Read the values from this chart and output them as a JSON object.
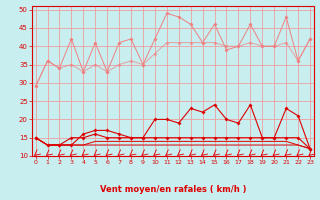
{
  "x": [
    0,
    1,
    2,
    3,
    4,
    5,
    6,
    7,
    8,
    9,
    10,
    11,
    12,
    13,
    14,
    15,
    16,
    17,
    18,
    19,
    20,
    21,
    22,
    23
  ],
  "line1": [
    29,
    36,
    34,
    42,
    33,
    41,
    33,
    41,
    42,
    35,
    42,
    49,
    48,
    46,
    41,
    46,
    39,
    40,
    46,
    40,
    40,
    48,
    36,
    42
  ],
  "line2": [
    29,
    36,
    34,
    35,
    33,
    35,
    33,
    35,
    36,
    35,
    38,
    41,
    41,
    41,
    41,
    41,
    40,
    40,
    41,
    40,
    40,
    41,
    36,
    42
  ],
  "line3": [
    15,
    13,
    13,
    13,
    16,
    17,
    17,
    16,
    15,
    15,
    20,
    20,
    19,
    23,
    22,
    24,
    20,
    19,
    24,
    15,
    15,
    23,
    21,
    12
  ],
  "line4": [
    15,
    13,
    13,
    15,
    15,
    16,
    15,
    15,
    15,
    15,
    15,
    15,
    15,
    15,
    15,
    15,
    15,
    15,
    15,
    15,
    15,
    15,
    15,
    12
  ],
  "line5": [
    15,
    13,
    13,
    13,
    13,
    14,
    14,
    14,
    14,
    14,
    14,
    14,
    14,
    14,
    14,
    14,
    14,
    14,
    14,
    14,
    14,
    14,
    13,
    12
  ],
  "line6": [
    15,
    13,
    13,
    13,
    13,
    13,
    13,
    13,
    13,
    13,
    13,
    13,
    13,
    13,
    13,
    13,
    13,
    13,
    13,
    13,
    13,
    13,
    13,
    12
  ],
  "color_pink": "#f08080",
  "color_red": "#dd0000",
  "bg_color": "#c8eef0",
  "grid_color": "#f0a0a0",
  "xlabel": "Vent moyen/en rafales ( km/h )",
  "ylim": [
    10,
    51
  ],
  "yticks": [
    10,
    15,
    20,
    25,
    30,
    35,
    40,
    45,
    50
  ],
  "xticks": [
    0,
    1,
    2,
    3,
    4,
    5,
    6,
    7,
    8,
    9,
    10,
    11,
    12,
    13,
    14,
    15,
    16,
    17,
    18,
    19,
    20,
    21,
    22,
    23
  ]
}
